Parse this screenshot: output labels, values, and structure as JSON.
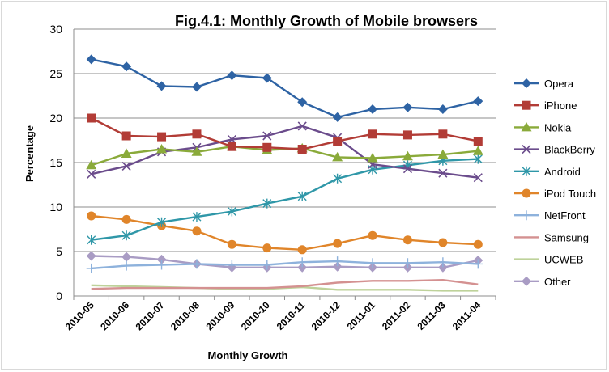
{
  "chart_data": {
    "type": "line",
    "title": "Fig.4.1: Monthly Growth of Mobile browsers",
    "xlabel": "Monthly Growth",
    "ylabel": "Percentage",
    "ylim": [
      0,
      30
    ],
    "yticks": [
      0,
      5,
      10,
      15,
      20,
      25,
      30
    ],
    "grid": "horizontal",
    "legend": "right",
    "categories": [
      "2010-05",
      "2010-06",
      "2010-07",
      "2010-08",
      "2010-09",
      "2010-10",
      "2010-11",
      "2010-12",
      "2011-01",
      "2011-02",
      "2011-03",
      "2011-04"
    ],
    "series": [
      {
        "name": "Opera",
        "color": "#2e63a4",
        "marker": "diamond",
        "values": [
          26.6,
          25.8,
          23.6,
          23.5,
          24.8,
          24.5,
          21.8,
          20.1,
          21.0,
          21.2,
          21.0,
          21.9
        ]
      },
      {
        "name": "iPhone",
        "color": "#b23c36",
        "marker": "square",
        "values": [
          20.0,
          18.0,
          17.9,
          18.2,
          16.8,
          16.7,
          16.5,
          17.4,
          18.2,
          18.1,
          18.2,
          17.4
        ]
      },
      {
        "name": "Nokia",
        "color": "#8aaa3a",
        "marker": "triangle",
        "values": [
          14.7,
          16.0,
          16.5,
          16.2,
          16.8,
          16.4,
          16.6,
          15.6,
          15.5,
          15.7,
          15.9,
          16.3
        ]
      },
      {
        "name": "BlackBerry",
        "color": "#6b4c8c",
        "marker": "x",
        "values": [
          13.7,
          14.6,
          16.2,
          16.7,
          17.6,
          18.0,
          19.1,
          17.8,
          14.8,
          14.3,
          13.8,
          13.3
        ]
      },
      {
        "name": "Android",
        "color": "#2f97a8",
        "marker": "star",
        "values": [
          6.3,
          6.8,
          8.3,
          8.9,
          9.5,
          10.4,
          11.2,
          13.2,
          14.2,
          14.7,
          15.2,
          15.4
        ]
      },
      {
        "name": "iPod Touch",
        "color": "#e0852a",
        "marker": "circle",
        "values": [
          9.0,
          8.6,
          7.9,
          7.3,
          5.8,
          5.4,
          5.2,
          5.9,
          6.8,
          6.3,
          6.0,
          5.8
        ]
      },
      {
        "name": "NetFront",
        "color": "#8eb2dc",
        "marker": "plus",
        "values": [
          3.1,
          3.4,
          3.5,
          3.6,
          3.5,
          3.5,
          3.8,
          3.9,
          3.7,
          3.7,
          3.8,
          3.6
        ]
      },
      {
        "name": "Samsung",
        "color": "#d49191",
        "marker": "none",
        "values": [
          0.8,
          0.9,
          0.9,
          0.9,
          0.9,
          0.9,
          1.1,
          1.5,
          1.7,
          1.7,
          1.8,
          1.3
        ]
      },
      {
        "name": "UCWEB",
        "color": "#bed29a",
        "marker": "none",
        "values": [
          1.2,
          1.1,
          1.0,
          0.9,
          0.8,
          0.8,
          1.0,
          0.7,
          0.7,
          0.7,
          0.6,
          0.6
        ]
      },
      {
        "name": "Other",
        "color": "#a99cc4",
        "marker": "diamond",
        "values": [
          4.5,
          4.4,
          4.1,
          3.6,
          3.2,
          3.2,
          3.2,
          3.3,
          3.2,
          3.2,
          3.2,
          4.0
        ]
      }
    ]
  }
}
